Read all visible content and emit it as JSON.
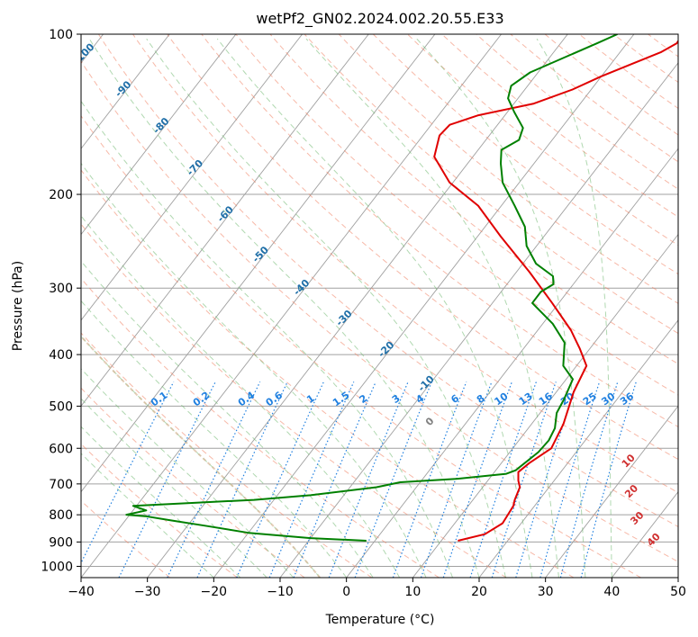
{
  "chart_data": {
    "type": "line",
    "subtype": "skew-t log-p diagram",
    "title": "wetPf2_GN02.2024.002.20.55.E33",
    "xlabel": "Temperature (°C)",
    "ylabel": "Pressure (hPa)",
    "xlim": [
      -40,
      50
    ],
    "ylim": [
      1050,
      100
    ],
    "y_scale": "log",
    "x_ticks": [
      -40,
      -30,
      -20,
      -10,
      0,
      10,
      20,
      30,
      40,
      50
    ],
    "y_ticks": [
      100,
      200,
      300,
      400,
      500,
      600,
      700,
      800,
      900,
      1000
    ],
    "grid": true,
    "colors": {
      "temperature": "#e00000",
      "dewpoint": "#008000",
      "isotherm": "#a0a0a0",
      "dry_adiabat": "#f08060",
      "moist_adiabat": "#70b870",
      "mixing_ratio": "#2080e0",
      "dry_adiabat_label": "#d03030",
      "moist_adiabat_label": "#1f6fa8",
      "zero_label": "#808080",
      "freezing_line": "#d8b898"
    },
    "series": [
      {
        "key": "temperature",
        "color": "#e00000",
        "points": [
          [
            12.5,
            895
          ],
          [
            15.8,
            870
          ],
          [
            17.2,
            830
          ],
          [
            16.8,
            770
          ],
          [
            16.3,
            750
          ],
          [
            15.6,
            710
          ],
          [
            14.6,
            690
          ],
          [
            13.6,
            665
          ],
          [
            14.2,
            640
          ],
          [
            15.8,
            600
          ],
          [
            14.8,
            540
          ],
          [
            12.6,
            470
          ],
          [
            11.5,
            420
          ],
          [
            8.5,
            390
          ],
          [
            5.0,
            360
          ],
          [
            -1.0,
            320
          ],
          [
            -8.0,
            280
          ],
          [
            -16.5,
            240
          ],
          [
            -23.5,
            210
          ],
          [
            -30.5,
            190
          ],
          [
            -35.8,
            170
          ],
          [
            -37.5,
            155
          ],
          [
            -37.2,
            148
          ],
          [
            -34.0,
            142
          ],
          [
            -27.0,
            135
          ],
          [
            -22.8,
            127
          ],
          [
            -20.0,
            120
          ],
          [
            -17.0,
            114
          ],
          [
            -13.8,
            108
          ],
          [
            -12.5,
            104
          ],
          [
            -12.6,
            100
          ]
        ]
      },
      {
        "key": "dewpoint",
        "color": "#008000",
        "points": [
          [
            -1.3,
            895
          ],
          [
            -10.0,
            885
          ],
          [
            -20.0,
            865
          ],
          [
            -27.0,
            840
          ],
          [
            -33.0,
            820
          ],
          [
            -37.5,
            805
          ],
          [
            -40.5,
            800
          ],
          [
            -38.0,
            785
          ],
          [
            -40.5,
            770
          ],
          [
            -32.0,
            760
          ],
          [
            -23.0,
            750
          ],
          [
            -15.0,
            735
          ],
          [
            -6.0,
            710
          ],
          [
            -3.0,
            695
          ],
          [
            5.0,
            685
          ],
          [
            12.0,
            670
          ],
          [
            13.0,
            660
          ],
          [
            14.3,
            610
          ],
          [
            14.5,
            580
          ],
          [
            14.0,
            550
          ],
          [
            12.5,
            515
          ],
          [
            12.0,
            485
          ],
          [
            11.0,
            445
          ],
          [
            8.0,
            420
          ],
          [
            5.5,
            380
          ],
          [
            1.5,
            350
          ],
          [
            -4.0,
            320
          ],
          [
            -4.0,
            305
          ],
          [
            -3.0,
            295
          ],
          [
            -4.0,
            285
          ],
          [
            -8.0,
            270
          ],
          [
            -11.5,
            250
          ],
          [
            -14.0,
            230
          ],
          [
            -18.0,
            210
          ],
          [
            -22.5,
            190
          ],
          [
            -25.0,
            175
          ],
          [
            -26.5,
            165
          ],
          [
            -25.0,
            158
          ],
          [
            -25.8,
            150
          ],
          [
            -29.0,
            140
          ],
          [
            -31.5,
            132
          ],
          [
            -32.5,
            125
          ],
          [
            -31.2,
            118
          ],
          [
            -27.5,
            110
          ],
          [
            -24.5,
            104
          ],
          [
            -22.5,
            100
          ]
        ]
      }
    ],
    "mixing_ratio_labels": [
      "0.1",
      "0.2",
      "0.4",
      "0.6",
      "1",
      "1.5",
      "2",
      "3",
      "4",
      "6",
      "8",
      "10",
      "13",
      "16",
      "20",
      "25",
      "30",
      "36"
    ],
    "dry_adiabat_labels": [
      "10",
      "20",
      "30",
      "40"
    ],
    "moist_adiabat_labels": [
      "-100",
      "-90",
      "-80",
      "-70",
      "-60",
      "-50",
      "-40",
      "-30",
      "-20",
      "-10",
      "0"
    ]
  }
}
